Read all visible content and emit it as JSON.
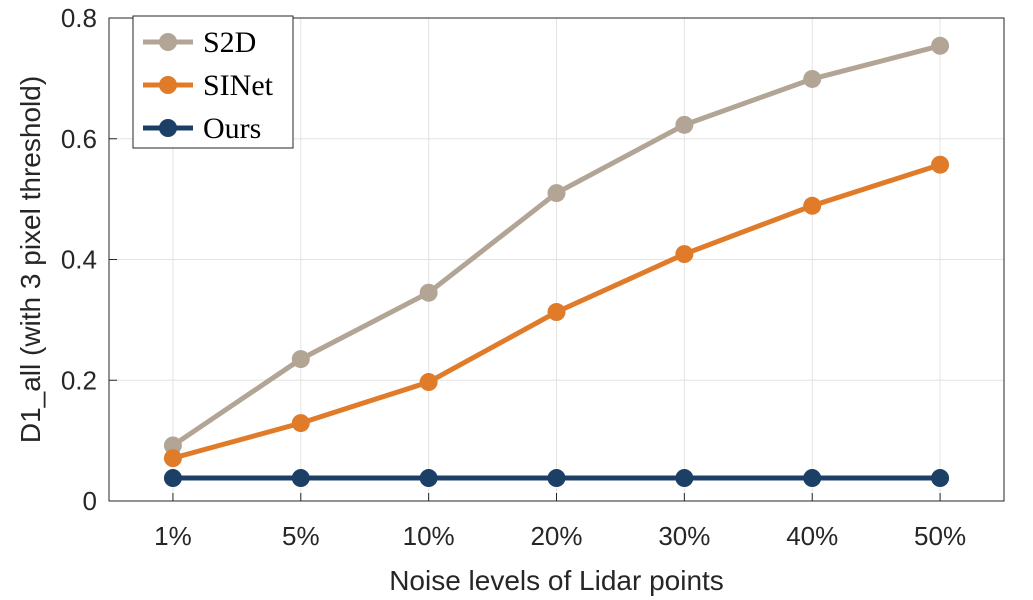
{
  "chart_data": {
    "type": "line",
    "title": "",
    "xlabel": "Noise levels of Lidar points",
    "ylabel": "D1_all (with 3 pixel threshold)",
    "categories": [
      "1%",
      "5%",
      "10%",
      "20%",
      "30%",
      "40%",
      "50%"
    ],
    "ylim": [
      0,
      0.8
    ],
    "yticks": [
      0,
      0.2,
      0.4,
      0.6,
      0.8
    ],
    "ytick_labels": [
      "0",
      "0.2",
      "0.4",
      "0.6",
      "0.8"
    ],
    "grid": true,
    "legend_position": "top-left",
    "series": [
      {
        "name": "S2D",
        "color": "#b2a596",
        "values": [
          0.092,
          0.235,
          0.345,
          0.51,
          0.623,
          0.699,
          0.754
        ]
      },
      {
        "name": "SINet",
        "color": "#e07b2a",
        "values": [
          0.071,
          0.129,
          0.197,
          0.313,
          0.409,
          0.489,
          0.557
        ]
      },
      {
        "name": "Ours",
        "color": "#1c3f66",
        "values": [
          0.038,
          0.038,
          0.038,
          0.038,
          0.038,
          0.038,
          0.038
        ]
      }
    ]
  }
}
